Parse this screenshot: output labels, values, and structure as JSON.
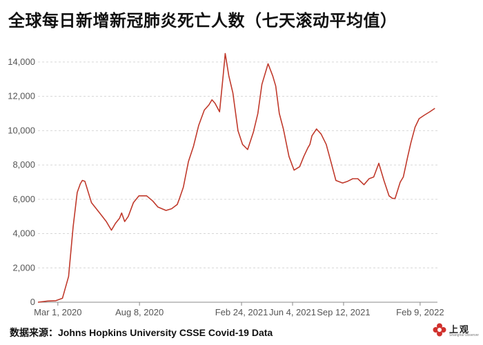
{
  "title": "全球每日新增新冠肺炎死亡人数（七天滚动平均值）",
  "source": "数据来源：Johns Hopkins University CSSE Covid-19 Data",
  "logo": {
    "icon": "flower-logo-icon",
    "text": "上观",
    "subtext": "Shanghai Observer",
    "color": "#d0312d"
  },
  "chart_data": {
    "type": "line",
    "title": "全球每日新增新冠肺炎死亡人数（七天滚动平均值）",
    "xlabel": "",
    "ylabel": "",
    "ylim": [
      0,
      14600
    ],
    "yticks": [
      0,
      2000,
      4000,
      6000,
      8000,
      10000,
      12000,
      14000
    ],
    "ytick_labels": [
      "0",
      "2,000",
      "4,000",
      "6,000",
      "8,000",
      "10,000",
      "12,000",
      "14,000"
    ],
    "xlim": [
      "2020-01-22",
      "2022-03-15"
    ],
    "xticks": [
      "2020-03-01",
      "2020-08-08",
      "2021-02-24",
      "2021-06-04",
      "2021-09-12",
      "2022-02-09"
    ],
    "xtick_labels": [
      "Mar 1, 2020",
      "Aug 8, 2020",
      "Feb 24, 2021",
      "Jun 4, 2021",
      "Sep 12, 2021",
      "Feb 9, 2022"
    ],
    "grid": true,
    "line_color": "#c0392b",
    "series": [
      {
        "x": [
          "2020-01-22",
          "2020-02-10",
          "2020-02-26",
          "2020-03-10",
          "2020-03-22",
          "2020-03-31",
          "2020-04-08",
          "2020-04-14",
          "2020-04-18",
          "2020-04-23",
          "2020-05-06",
          "2020-05-22",
          "2020-06-04",
          "2020-06-10",
          "2020-06-14",
          "2020-06-22",
          "2020-06-30",
          "2020-07-04",
          "2020-07-10",
          "2020-07-17",
          "2020-07-27",
          "2020-08-07",
          "2020-08-22",
          "2020-09-03",
          "2020-09-13",
          "2020-09-29",
          "2020-10-10",
          "2020-10-21",
          "2020-10-26",
          "2020-11-02",
          "2020-11-12",
          "2020-11-22",
          "2020-12-02",
          "2020-12-13",
          "2020-12-22",
          "2020-12-28",
          "2021-01-03",
          "2021-01-12",
          "2021-01-19",
          "2021-01-23",
          "2021-01-30",
          "2021-02-07",
          "2021-02-17",
          "2021-02-26",
          "2021-03-08",
          "2021-03-19",
          "2021-03-28",
          "2021-04-05",
          "2021-04-17",
          "2021-04-26",
          "2021-05-02",
          "2021-05-09",
          "2021-05-17",
          "2021-05-28",
          "2021-06-07",
          "2021-06-18",
          "2021-06-26",
          "2021-07-04",
          "2021-07-08",
          "2021-07-12",
          "2021-07-21",
          "2021-07-30",
          "2021-08-09",
          "2021-08-18",
          "2021-08-28",
          "2021-09-10",
          "2021-09-20",
          "2021-09-30",
          "2021-10-10",
          "2021-10-22",
          "2021-11-01",
          "2021-11-10",
          "2021-11-20",
          "2021-11-30",
          "2021-12-10",
          "2021-12-17",
          "2021-12-22",
          "2022-01-01",
          "2022-01-07",
          "2022-01-15",
          "2022-01-22",
          "2022-01-30",
          "2022-02-07",
          "2022-02-17",
          "2022-02-28",
          "2022-03-10"
        ],
        "y": [
          0,
          70,
          90,
          230,
          1500,
          4400,
          6400,
          6900,
          7100,
          7050,
          5800,
          5200,
          4700,
          4400,
          4200,
          4600,
          4900,
          5200,
          4700,
          5000,
          5800,
          6200,
          6200,
          5900,
          5550,
          5350,
          5450,
          5700,
          6100,
          6700,
          8200,
          9100,
          10300,
          11200,
          11500,
          11800,
          11600,
          11100,
          13200,
          14500,
          13200,
          12200,
          10000,
          9200,
          8900,
          9900,
          11000,
          12700,
          13900,
          13200,
          12600,
          11000,
          10100,
          8500,
          7700,
          7900,
          8500,
          9000,
          9200,
          9700,
          10100,
          9800,
          9200,
          8200,
          7100,
          6950,
          7050,
          7200,
          7200,
          6850,
          7200,
          7300,
          8100,
          7100,
          6200,
          6050,
          6050,
          7000,
          7300,
          8400,
          9300,
          10200,
          10700,
          10900,
          11100,
          11300
        ]
      }
    ]
  }
}
